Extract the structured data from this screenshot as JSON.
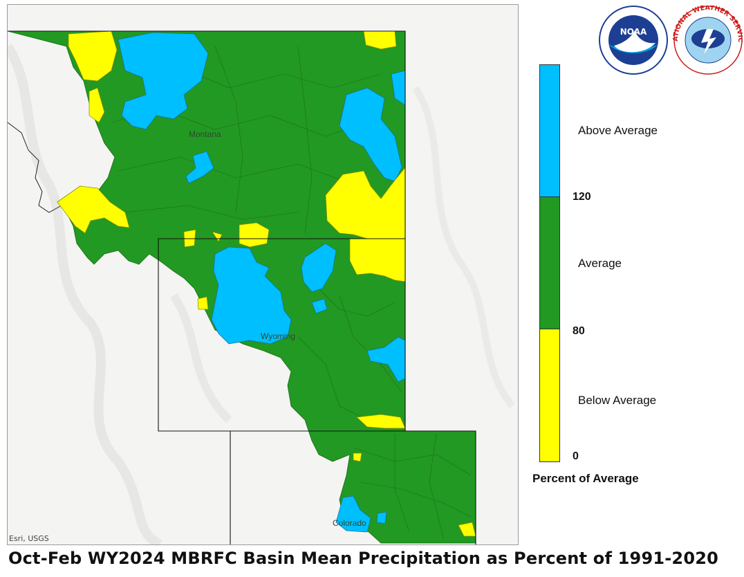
{
  "map": {
    "attribution": "Esri, USGS",
    "state_labels": [
      "Montana",
      "Wyoming",
      "Colorado"
    ]
  },
  "legend": {
    "title": "Percent of Average",
    "categories": [
      {
        "label": "Above Average",
        "color": "#00bfff"
      },
      {
        "label": "Average",
        "color": "#229922"
      },
      {
        "label": "Below Average",
        "color": "#ffff00"
      }
    ],
    "breaks": [
      "120",
      "80",
      "0"
    ]
  },
  "logos": {
    "noaa_text": "NOAA",
    "nws_text": "NATIONAL WEATHER SERVICE"
  },
  "caption": "Oct-Feb WY2024 MBRFC Basin Mean Precipitation as Percent of 1991-2020",
  "colors": {
    "above": "#00bfff",
    "average": "#229922",
    "below": "#ffff00",
    "basemap": "#f4f4f2"
  }
}
